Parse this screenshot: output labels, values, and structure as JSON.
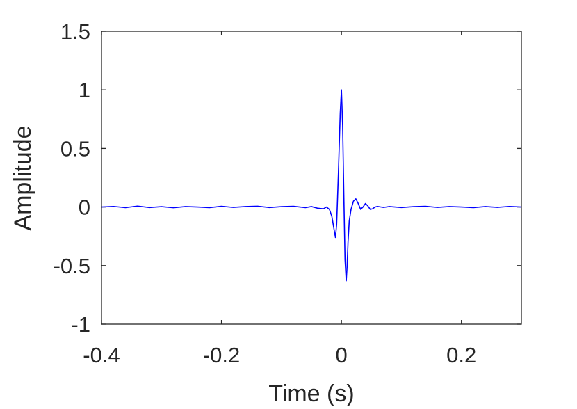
{
  "chart_data": {
    "type": "line",
    "title": "",
    "xlabel": "Time (s)",
    "ylabel": "Amplitude",
    "xlim": [
      -0.4,
      0.3
    ],
    "ylim": [
      -1,
      1.5
    ],
    "xticks": [
      -0.4,
      -0.2,
      0,
      0.2
    ],
    "xtick_labels": [
      "-0.4",
      "-0.2",
      "0",
      "0.2"
    ],
    "yticks": [
      -1,
      -0.5,
      0,
      0.5,
      1,
      1.5
    ],
    "ytick_labels": [
      "-1",
      "-0.5",
      "0",
      "0.5",
      "1",
      "1.5"
    ],
    "grid": false,
    "box": true,
    "series": [
      {
        "color": "#0000ff",
        "x": [
          -0.4,
          -0.38,
          -0.36,
          -0.34,
          -0.32,
          -0.3,
          -0.28,
          -0.26,
          -0.24,
          -0.22,
          -0.2,
          -0.18,
          -0.16,
          -0.14,
          -0.12,
          -0.1,
          -0.08,
          -0.06,
          -0.05,
          -0.04,
          -0.03,
          -0.025,
          -0.02,
          -0.016,
          -0.012,
          -0.01,
          -0.008,
          -0.005,
          -0.002,
          0.0,
          0.002,
          0.004,
          0.006,
          0.008,
          0.0095,
          0.011,
          0.013,
          0.016,
          0.02,
          0.024,
          0.028,
          0.032,
          0.036,
          0.04,
          0.044,
          0.048,
          0.052,
          0.056,
          0.06,
          0.07,
          0.08,
          0.1,
          0.12,
          0.14,
          0.16,
          0.18,
          0.2,
          0.22,
          0.24,
          0.26,
          0.28,
          0.3
        ],
        "y": [
          0.0,
          0.005,
          -0.005,
          0.008,
          -0.004,
          0.003,
          -0.006,
          0.004,
          0.0,
          -0.005,
          0.006,
          -0.003,
          0.004,
          0.007,
          -0.004,
          0.003,
          0.006,
          -0.005,
          0.004,
          -0.01,
          -0.015,
          0.0,
          -0.02,
          -0.08,
          -0.2,
          -0.26,
          -0.15,
          0.3,
          0.8,
          1.0,
          0.7,
          0.1,
          -0.45,
          -0.63,
          -0.5,
          -0.3,
          -0.12,
          -0.02,
          0.05,
          0.07,
          0.03,
          -0.02,
          0.0,
          0.03,
          0.01,
          -0.02,
          -0.015,
          0.0,
          0.005,
          -0.003,
          0.004,
          -0.004,
          0.003,
          0.006,
          -0.003,
          0.004,
          0.0,
          -0.005,
          0.004,
          -0.003,
          0.005,
          0.0
        ]
      }
    ]
  }
}
